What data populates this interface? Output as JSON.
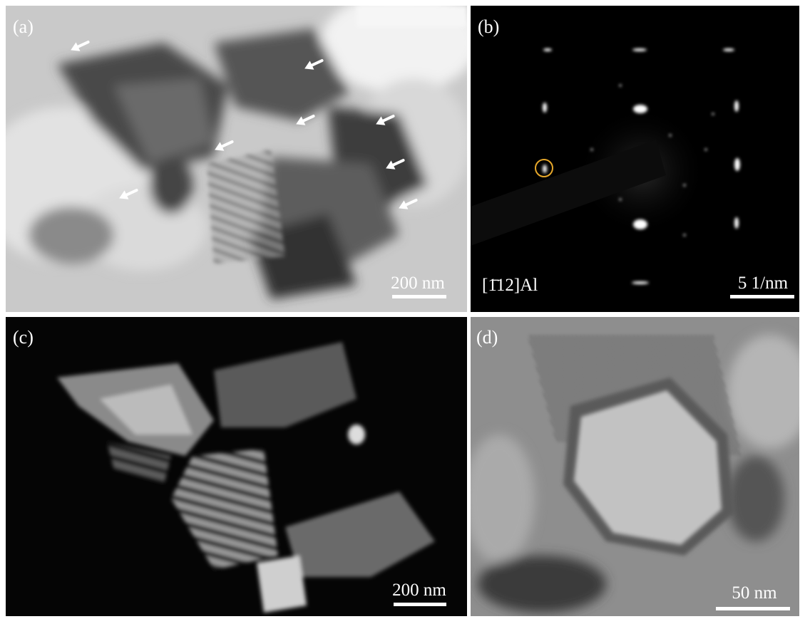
{
  "panels": [
    {
      "label": "(a)",
      "scale_bar": "200 nm"
    },
    {
      "label": "(b)",
      "scale_bar": "5 1/nm",
      "annotation": "[1̄12]Al"
    },
    {
      "label": "(c)",
      "scale_bar": "200 nm"
    },
    {
      "label": "(d)",
      "scale_bar": "50 nm"
    }
  ]
}
